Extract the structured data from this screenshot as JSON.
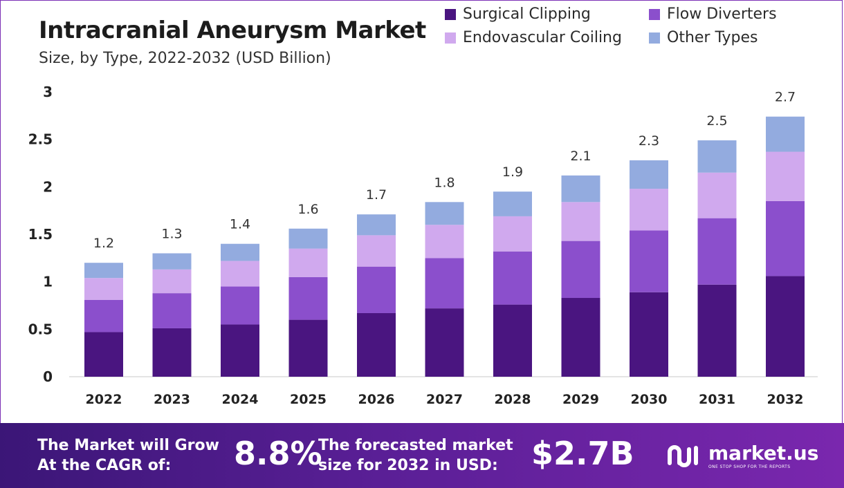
{
  "chart_data": {
    "type": "bar",
    "stacked": true,
    "title": "Intracranial Aneurysm Market",
    "subtitle": "Size, by Type, 2022-2032 (USD Billion)",
    "categories": [
      "2022",
      "2023",
      "2024",
      "2025",
      "2026",
      "2027",
      "2028",
      "2029",
      "2030",
      "2031",
      "2032"
    ],
    "series": [
      {
        "name": "Surgical Clipping",
        "color": "#4a1580",
        "values": [
          0.47,
          0.51,
          0.55,
          0.6,
          0.67,
          0.72,
          0.76,
          0.83,
          0.89,
          0.97,
          1.06
        ]
      },
      {
        "name": "Flow Diverters",
        "color": "#8b4fcc",
        "values": [
          0.34,
          0.37,
          0.4,
          0.45,
          0.49,
          0.53,
          0.56,
          0.6,
          0.65,
          0.7,
          0.79
        ]
      },
      {
        "name": "Endovascular Coiling",
        "color": "#d0a9ee",
        "values": [
          0.23,
          0.25,
          0.27,
          0.3,
          0.33,
          0.35,
          0.37,
          0.41,
          0.44,
          0.48,
          0.52
        ]
      },
      {
        "name": "Other Types",
        "color": "#93abdf",
        "values": [
          0.16,
          0.17,
          0.18,
          0.21,
          0.22,
          0.24,
          0.26,
          0.28,
          0.3,
          0.34,
          0.37
        ]
      }
    ],
    "totals": [
      "1.2",
      "1.3",
      "1.4",
      "1.6",
      "1.7",
      "1.8",
      "1.9",
      "2.1",
      "2.3",
      "2.5",
      "2.7"
    ],
    "ylim": [
      0,
      3
    ],
    "yticks": [
      "0",
      "0.5",
      "1",
      "1.5",
      "2",
      "2.5",
      "3"
    ],
    "grid": false,
    "legend": "top-right"
  },
  "banner": {
    "cagr_label_line1": "The Market will Grow",
    "cagr_label_line2": "At the CAGR of:",
    "cagr_value": "8.8%",
    "forecast_label_line1": "The forecasted market",
    "forecast_label_line2": "size for 2032 in USD:",
    "forecast_value": "$2.7B",
    "brand_name": "market.us",
    "brand_tagline": "ONE STOP SHOP FOR THE REPORTS"
  }
}
